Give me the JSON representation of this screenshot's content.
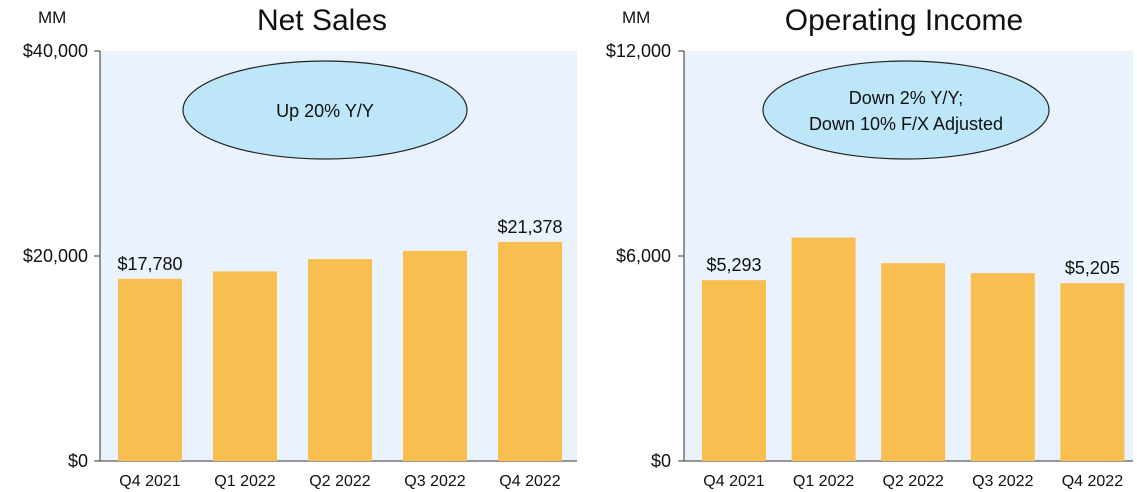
{
  "chart_data": [
    {
      "type": "bar",
      "title": "Net Sales",
      "unit": "MM",
      "categories": [
        "Q4 2021",
        "Q1 2022",
        "Q2 2022",
        "Q3 2022",
        "Q4 2022"
      ],
      "values": [
        17780,
        18500,
        19700,
        20500,
        21378
      ],
      "ylim": [
        0,
        40000
      ],
      "yticks": [
        "$0",
        "$20,000",
        "$40,000"
      ],
      "data_labels": [
        "$17,780",
        "",
        "",
        "",
        "$21,378"
      ],
      "callout": [
        "Up 20% Y/Y"
      ],
      "bar_color": "#F8BE4F",
      "plot_bg": "#EAF2FD",
      "callout_color": "#BDE6F8"
    },
    {
      "type": "bar",
      "title": "Operating Income",
      "unit": "MM",
      "categories": [
        "Q4 2021",
        "Q1 2022",
        "Q2 2022",
        "Q3 2022",
        "Q4 2022"
      ],
      "values": [
        5293,
        6540,
        5790,
        5500,
        5205
      ],
      "ylim": [
        0,
        12000
      ],
      "yticks": [
        "$0",
        "$6,000",
        "$12,000"
      ],
      "data_labels": [
        "$5,293",
        "",
        "",
        "",
        "$5,205"
      ],
      "callout": [
        "Down 2% Y/Y;",
        "Down 10% F/X Adjusted"
      ],
      "bar_color": "#F8BE4F",
      "plot_bg": "#EAF2FD",
      "callout_color": "#BDE6F8"
    }
  ]
}
